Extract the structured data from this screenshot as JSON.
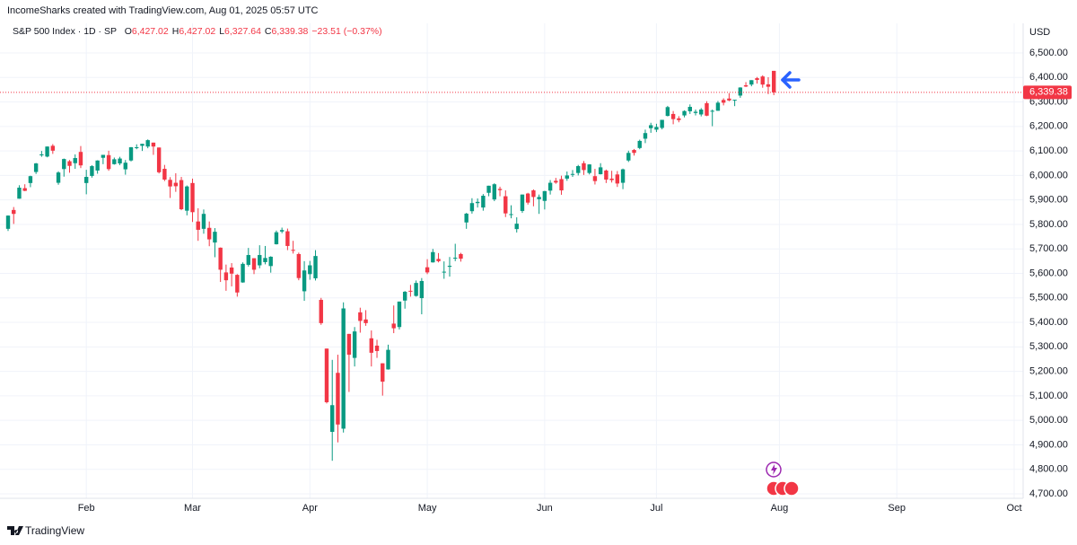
{
  "header": {
    "credit": "IncomeSharks created with TradingView.com, Aug 01, 2025 05:57 UTC",
    "symbol": "S&P 500 Index · 1D · SP",
    "ohlc": [
      {
        "key": "O",
        "value": "6,427.02"
      },
      {
        "key": "H",
        "value": "6,427.02"
      },
      {
        "key": "L",
        "value": "6,327.64"
      },
      {
        "key": "C",
        "value": "6,339.38"
      }
    ],
    "change": "−23.51 (−0.37%)",
    "currency": "USD"
  },
  "footer": {
    "brand": "TradingView"
  },
  "chart_data": {
    "type": "candlestick",
    "up_color": "#089981",
    "down_color": "#f23645",
    "grid": true,
    "open": [
      5782,
      5859,
      5905,
      5948,
      5969,
      6014,
      6082,
      6077,
      6121,
      5970,
      6026,
      6058,
      6050,
      6096,
      5969,
      5998,
      6020,
      6072,
      6083,
      6046,
      6049,
      6025,
      6061,
      6115,
      6121,
      6118,
      6134,
      6114,
      6027,
      5982,
      5970,
      5981,
      5856,
      5969,
      5812,
      5782,
      5786,
      5726,
      5705,
      5604,
      5624,
      5594,
      5563,
      5635,
      5662,
      5633,
      5646,
      5630,
      5719,
      5771,
      5772,
      5696,
      5679,
      5527,
      5597,
      5580,
      5492,
      5293,
      4953,
      5194,
      4966,
      5353,
      5255,
      5441,
      5412,
      5335,
      5305,
      5233,
      5208,
      5395,
      5381,
      5489,
      5529,
      5508,
      5499,
      5625,
      5645,
      5659,
      5605,
      5627,
      5663,
      5679,
      5808,
      5854,
      5887,
      5869,
      5929,
      5902,
      5945,
      5915,
      5841,
      5781,
      5855,
      5926,
      5939,
      5903,
      5896,
      5938,
      5978,
      5985,
      5987,
      6005,
      6010,
      6050,
      6010,
      5997,
      6005,
      6020,
      5987,
      6004,
      5970,
      6061,
      6104,
      6112,
      6150,
      6193,
      6187,
      6194,
      6243,
      6251,
      6233,
      6245,
      6262,
      6255,
      6249,
      6295,
      6262,
      6264,
      6308,
      6314,
      6307,
      6326,
      6368,
      6371,
      6397,
      6404,
      6372,
      6427.02
    ],
    "high": [
      5837,
      5871,
      5960,
      5964,
      5999,
      6051,
      6100,
      6118,
      6128,
      6017,
      6069,
      6063,
      6086,
      6120,
      6023,
      6042,
      6062,
      6084,
      6101,
      6073,
      6076,
      6063,
      6116,
      6127,
      6129,
      6147,
      6134,
      6114,
      6043,
      5993,
      6009,
      5994,
      5959,
      5987,
      5866,
      5861,
      5812,
      5785,
      5706,
      5636,
      5642,
      5597,
      5645,
      5704,
      5662,
      5715,
      5712,
      5670,
      5775,
      5787,
      5783,
      5733,
      5685,
      5650,
      5651,
      5695,
      5500,
      5293,
      5247,
      5268,
      5482,
      5353,
      5381,
      5460,
      5450,
      5367,
      5329,
      5233,
      5309,
      5469,
      5485,
      5528,
      5553,
      5571,
      5581,
      5658,
      5700,
      5683,
      5649,
      5667,
      5721,
      5684,
      5847,
      5907,
      5906,
      5924,
      5958,
      5968,
      5954,
      5939,
      5878,
      5829,
      5922,
      5929,
      5943,
      5922,
      5937,
      5981,
      5990,
      5999,
      6016,
      6022,
      6043,
      6059,
      6046,
      6027,
      6050,
      6024,
      6019,
      6018,
      6028,
      6101,
      6108,
      6146,
      6187,
      6215,
      6211,
      6227,
      6284,
      6263,
      6242,
      6266,
      6290,
      6269,
      6275,
      6303,
      6269,
      6304,
      6315,
      6336,
      6309,
      6360,
      6381,
      6389,
      6402,
      6409,
      6401,
      6427.02
    ],
    "low": [
      5773,
      5802,
      5905,
      5936,
      5952,
      6006,
      6076,
      6074,
      6088,
      5962,
      5995,
      6011,
      6027,
      6030,
      5923,
      5991,
      6007,
      6046,
      6019,
      6044,
      6042,
      6003,
      6057,
      6107,
      6100,
      6111,
      6084,
      6008,
      5977,
      5908,
      5933,
      5858,
      5837,
      5810,
      5733,
      5762,
      5711,
      5666,
      5565,
      5529,
      5547,
      5505,
      5562,
      5628,
      5597,
      5621,
      5637,
      5603,
      5718,
      5764,
      5695,
      5681,
      5572,
      5488,
      5574,
      5571,
      5390,
      5069,
      4835,
      4910,
      4950,
      5116,
      5220,
      5358,
      5386,
      5220,
      5255,
      5101,
      5207,
      5356,
      5371,
      5456,
      5505,
      5505,
      5433,
      5597,
      5644,
      5645,
      5578,
      5587,
      5650,
      5648,
      5782,
      5844,
      5869,
      5856,
      5915,
      5895,
      5915,
      5830,
      5825,
      5767,
      5847,
      5881,
      5874,
      5843,
      5861,
      5922,
      5966,
      5921,
      5978,
      5994,
      6000,
      6002,
      6004,
      5963,
      6004,
      5969,
      5971,
      5953,
      5944,
      6055,
      6081,
      6107,
      6132,
      6174,
      6177,
      6188,
      6241,
      6209,
      6217,
      6237,
      6251,
      6245,
      6241,
      6242,
      6201,
      6264,
      6286,
      6303,
      6283,
      6317,
      6361,
      6364,
      6375,
      6358,
      6332,
      6327.64
    ],
    "close": [
      5836,
      5843,
      5950,
      5937,
      5997,
      6049,
      6086,
      6118,
      6101,
      6012,
      6067,
      6039,
      6071,
      6041,
      5994,
      6038,
      6061,
      6084,
      6026,
      6066,
      6069,
      6052,
      6115,
      6115,
      6129,
      6144,
      6118,
      6013,
      5983,
      5955,
      5956,
      5862,
      5955,
      5850,
      5778,
      5843,
      5739,
      5770,
      5615,
      5572,
      5599,
      5522,
      5639,
      5675,
      5615,
      5675,
      5663,
      5668,
      5768,
      5777,
      5712,
      5693,
      5581,
      5612,
      5633,
      5671,
      5397,
      5074,
      5062,
      4983,
      5457,
      5268,
      5363,
      5406,
      5397,
      5276,
      5283,
      5158,
      5288,
      5376,
      5485,
      5525,
      5528,
      5561,
      5569,
      5604,
      5687,
      5650,
      5607,
      5631,
      5664,
      5660,
      5844,
      5887,
      5892,
      5917,
      5958,
      5964,
      5940,
      5845,
      5842,
      5803,
      5922,
      5889,
      5912,
      5912,
      5936,
      5970,
      5971,
      5939,
      6000,
      6006,
      6038,
      6022,
      6045,
      5977,
      6033,
      5983,
      5981,
      5967,
      6025,
      6092,
      6092,
      6141,
      6173,
      6205,
      6198,
      6227,
      6279,
      6230,
      6226,
      6263,
      6280,
      6260,
      6269,
      6244,
      6264,
      6297,
      6297,
      6306,
      6309,
      6359,
      6363,
      6389,
      6390,
      6371,
      6362,
      6339.38
    ],
    "last_price": 6339.38,
    "last_price_label": "6,339.38",
    "xlim": [
      0,
      180
    ],
    "xticks": [
      {
        "value": 14,
        "label": "Feb"
      },
      {
        "value": 33,
        "label": "Mar"
      },
      {
        "value": 54,
        "label": "Apr"
      },
      {
        "value": 75,
        "label": "May"
      },
      {
        "value": 96,
        "label": "Jun"
      },
      {
        "value": 116,
        "label": "Jul"
      },
      {
        "value": 138,
        "label": "Aug"
      },
      {
        "value": 159,
        "label": "Sep"
      },
      {
        "value": 180,
        "label": "Oct"
      }
    ],
    "ylim": [
      4700,
      6500
    ],
    "yticks": [
      {
        "value": 4700,
        "label": "4,700.00"
      },
      {
        "value": 4800,
        "label": "4,800.00"
      },
      {
        "value": 4900,
        "label": "4,900.00"
      },
      {
        "value": 5000,
        "label": "5,000.00"
      },
      {
        "value": 5100,
        "label": "5,100.00"
      },
      {
        "value": 5200,
        "label": "5,200.00"
      },
      {
        "value": 5300,
        "label": "5,300.00"
      },
      {
        "value": 5400,
        "label": "5,400.00"
      },
      {
        "value": 5500,
        "label": "5,500.00"
      },
      {
        "value": 5600,
        "label": "5,600.00"
      },
      {
        "value": 5700,
        "label": "5,700.00"
      },
      {
        "value": 5800,
        "label": "5,800.00"
      },
      {
        "value": 5900,
        "label": "5,900.00"
      },
      {
        "value": 6000,
        "label": "6,000.00"
      },
      {
        "value": 6100,
        "label": "6,100.00"
      },
      {
        "value": 6200,
        "label": "6,200.00"
      },
      {
        "value": 6300,
        "label": "6,300.00"
      },
      {
        "value": 6400,
        "label": "6,400.00"
      },
      {
        "value": 6500,
        "label": "6,500.00"
      }
    ]
  }
}
